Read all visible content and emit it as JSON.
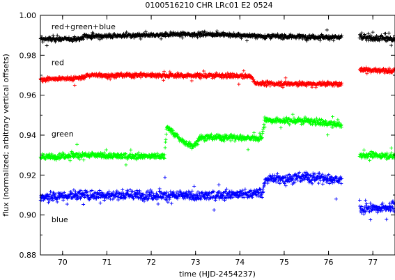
{
  "chart_data": {
    "type": "scatter",
    "title": "0100516210 CHR LRc01 E2 0524",
    "xlabel": "time (HJD-2454237)",
    "ylabel": "flux (normalized; arbitrary vertical offsets)",
    "xlim": [
      69.5,
      77.5
    ],
    "ylim": [
      0.88,
      1.0
    ],
    "x_ticks": [
      "70",
      "71",
      "72",
      "73",
      "74",
      "75",
      "76",
      "77"
    ],
    "y_ticks": [
      "0.88",
      "0.90",
      "0.92",
      "0.94",
      "0.96",
      "0.98",
      "1.00"
    ],
    "grid": false,
    "legend": "none",
    "marker": "plus",
    "gap": [
      76.3,
      76.7
    ],
    "series": [
      {
        "name": "red+green+blue",
        "color": "#000000",
        "segments": [
          {
            "x": [
              69.5,
              70.4,
              70.5,
              72.0,
              72.5,
              73.5,
              74.5,
              76.3
            ],
            "y": [
              0.988,
              0.9882,
              0.9895,
              0.99,
              0.9905,
              0.9905,
              0.9895,
              0.989
            ],
            "spread": 0.0012,
            "outliers": 0.06
          },
          {
            "x": [
              76.7,
              77.5
            ],
            "y": [
              0.989,
              0.988
            ],
            "spread": 0.0018,
            "outliers": 0.15
          }
        ]
      },
      {
        "name": "red",
        "color": "#ff0000",
        "segments": [
          {
            "x": [
              69.5,
              70.4,
              70.6,
              72.0,
              73.0,
              74.25,
              74.35,
              76.3
            ],
            "y": [
              0.968,
              0.9685,
              0.97,
              0.97,
              0.9698,
              0.9695,
              0.966,
              0.9655
            ],
            "spread": 0.0013,
            "outliers": 0.05
          },
          {
            "x": [
              76.7,
              77.5
            ],
            "y": [
              0.973,
              0.972
            ],
            "spread": 0.0015,
            "outliers": 0.06
          }
        ]
      },
      {
        "name": "green",
        "color": "#00ff00",
        "segments": [
          {
            "x": [
              69.5,
              70.3,
              71.5,
              72.3,
              72.35,
              72.55,
              72.75,
              72.95,
              73.1,
              74.5,
              74.55,
              75.5,
              76.3
            ],
            "y": [
              0.929,
              0.93,
              0.9295,
              0.9295,
              0.944,
              0.94,
              0.936,
              0.9345,
              0.939,
              0.9385,
              0.9475,
              0.947,
              0.945
            ],
            "spread": 0.0018,
            "outliers": 0.06
          },
          {
            "x": [
              76.7,
              77.5
            ],
            "y": [
              0.93,
              0.9295
            ],
            "spread": 0.0018,
            "outliers": 0.06
          }
        ]
      },
      {
        "name": "blue",
        "color": "#0000ff",
        "segments": [
          {
            "x": [
              69.5,
              70.5,
              72.0,
              73.0,
              74.5,
              74.6,
              75.5,
              76.3
            ],
            "y": [
              0.909,
              0.91,
              0.91,
              0.9095,
              0.911,
              0.918,
              0.919,
              0.9175
            ],
            "spread": 0.003,
            "outliers": 0.06
          },
          {
            "x": [
              76.7,
              77.5
            ],
            "y": [
              0.903,
              0.904
            ],
            "spread": 0.003,
            "outliers": 0.12
          }
        ]
      }
    ],
    "series_labels": [
      {
        "text": "red+green+blue",
        "x": 69.75,
        "y": 0.993
      },
      {
        "text": "red",
        "x": 69.75,
        "y": 0.975
      },
      {
        "text": "green",
        "x": 69.75,
        "y": 0.9393
      },
      {
        "text": "blue",
        "x": 69.75,
        "y": 0.8964
      }
    ]
  }
}
